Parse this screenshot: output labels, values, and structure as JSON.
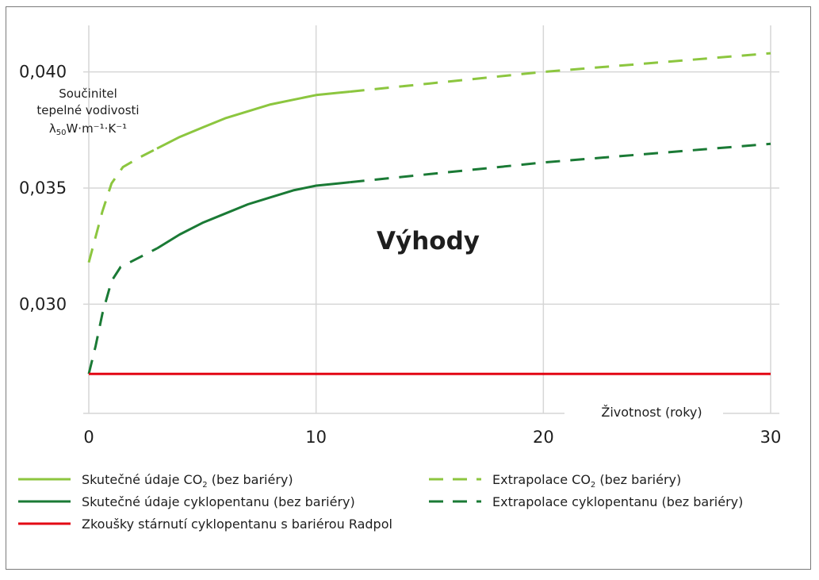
{
  "chart_data": {
    "type": "line",
    "title": "",
    "ylabel_lines": [
      "Součinitel",
      "tepelné vodivosti"
    ],
    "ylabel_formula": {
      "lambda": "λ",
      "sub": "50",
      "unit": "W·m⁻¹·K⁻¹"
    },
    "xlabel": "Životnost (roky)",
    "annotation": "Výhody",
    "xlim": [
      0,
      30
    ],
    "ylim": [
      0.0253,
      0.042
    ],
    "x_ticks": [
      {
        "value": 0,
        "label": "0"
      },
      {
        "value": 10,
        "label": "10"
      },
      {
        "value": 20,
        "label": "20"
      },
      {
        "value": 30,
        "label": "30"
      }
    ],
    "y_ticks": [
      {
        "value": 0.03,
        "label": "0,030"
      },
      {
        "value": 0.035,
        "label": "0,035"
      },
      {
        "value": 0.04,
        "label": "0,040"
      }
    ],
    "grid": true,
    "series": [
      {
        "id": "co2-extrap-start",
        "legend": false,
        "color": "#8cc63f",
        "dash": true,
        "points": [
          [
            0,
            0.0318
          ],
          [
            0.3,
            0.0329
          ],
          [
            0.6,
            0.034
          ],
          [
            1.0,
            0.0352
          ],
          [
            1.5,
            0.0359
          ],
          [
            2.2,
            0.0363
          ],
          [
            3.0,
            0.0367
          ]
        ]
      },
      {
        "id": "co2-actual",
        "legend": false,
        "color": "#8cc63f",
        "dash": false,
        "points": [
          [
            3.0,
            0.0367
          ],
          [
            4.0,
            0.0372
          ],
          [
            5.0,
            0.0376
          ],
          [
            6.0,
            0.038
          ],
          [
            7.0,
            0.0383
          ],
          [
            8.0,
            0.0386
          ],
          [
            9.0,
            0.0388
          ],
          [
            10.0,
            0.039
          ],
          [
            11.0,
            0.0391
          ],
          [
            11.5,
            0.03915
          ]
        ]
      },
      {
        "id": "co2-extrap-end",
        "legend": false,
        "color": "#8cc63f",
        "dash": true,
        "points": [
          [
            11.5,
            0.03915
          ],
          [
            15.0,
            0.0395
          ],
          [
            20.0,
            0.04
          ],
          [
            25.0,
            0.0404
          ],
          [
            30.0,
            0.0408
          ]
        ]
      },
      {
        "id": "cp-extrap-start",
        "legend": false,
        "color": "#1a7a35",
        "dash": true,
        "points": [
          [
            0,
            0.027
          ],
          [
            0.3,
            0.0282
          ],
          [
            0.6,
            0.0296
          ],
          [
            1.0,
            0.031
          ],
          [
            1.4,
            0.0316
          ],
          [
            2.2,
            0.032
          ],
          [
            3.0,
            0.0324
          ]
        ]
      },
      {
        "id": "cp-actual",
        "legend": false,
        "color": "#1a7a35",
        "dash": false,
        "points": [
          [
            3.0,
            0.0324
          ],
          [
            4.0,
            0.033
          ],
          [
            5.0,
            0.0335
          ],
          [
            6.0,
            0.0339
          ],
          [
            7.0,
            0.0343
          ],
          [
            8.0,
            0.0346
          ],
          [
            9.0,
            0.0349
          ],
          [
            10.0,
            0.0351
          ],
          [
            11.0,
            0.0352
          ],
          [
            11.5,
            0.03525
          ]
        ]
      },
      {
        "id": "cp-extrap-end",
        "legend": false,
        "color": "#1a7a35",
        "dash": true,
        "points": [
          [
            11.5,
            0.03525
          ],
          [
            15.0,
            0.0356
          ],
          [
            20.0,
            0.0361
          ],
          [
            25.0,
            0.0365
          ],
          [
            30.0,
            0.0369
          ]
        ]
      },
      {
        "id": "radpol",
        "legend": false,
        "color": "#e30613",
        "dash": false,
        "points": [
          [
            0,
            0.027
          ],
          [
            30.0,
            0.027
          ]
        ]
      }
    ],
    "legend_entries": [
      {
        "label": "Skutečné údaje CO",
        "sub": "2",
        "after": " (bez bariéry)",
        "color": "#8cc63f",
        "dash": false
      },
      {
        "label": "Skutečné údaje cyklopentanu (bez bariéry)",
        "sub": "",
        "after": "",
        "color": "#1a7a35",
        "dash": false
      },
      {
        "label": "Zkoušky stárnutí cyklopentanu s bariérou Radpol",
        "sub": "",
        "after": "",
        "color": "#e30613",
        "dash": false
      },
      {
        "label": "Extrapolace CO",
        "sub": "2",
        "after": " (bez bariéry)",
        "color": "#8cc63f",
        "dash": true
      },
      {
        "label": "Extrapolace cyklopentanu (bez bariéry)",
        "sub": "",
        "after": "",
        "color": "#1a7a35",
        "dash": true
      }
    ],
    "legend_position": "bottom"
  }
}
